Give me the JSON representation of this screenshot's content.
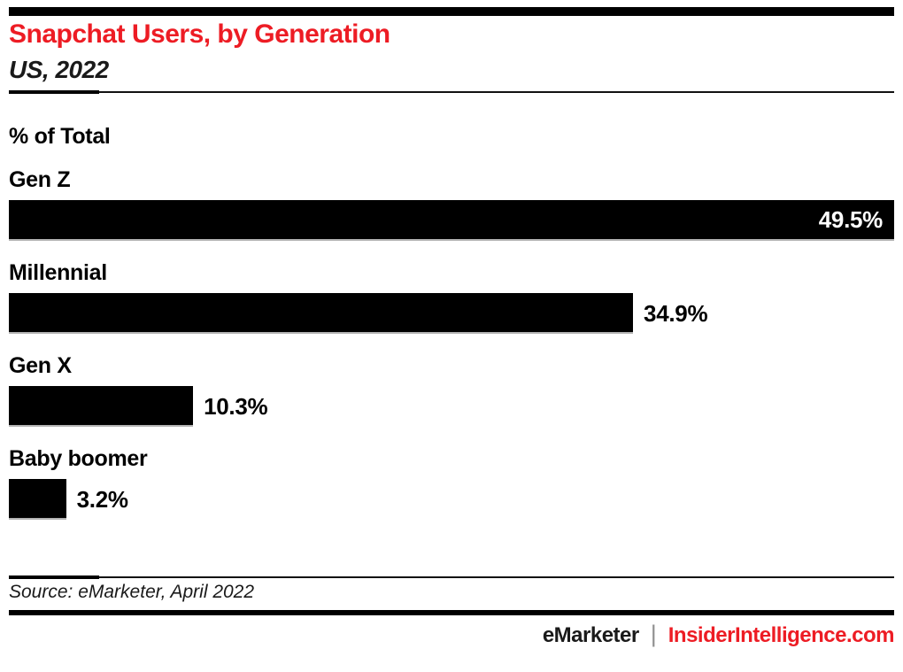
{
  "header": {
    "title": "Snapchat Users, by Generation",
    "subtitle": "US, 2022"
  },
  "chart_data": {
    "type": "bar",
    "orientation": "horizontal",
    "title": "Snapchat Users, by Generation",
    "subtitle": "US, 2022",
    "unit_label": "% of Total",
    "categories": [
      "Gen Z",
      "Millennial",
      "Gen X",
      "Baby boomer"
    ],
    "values": [
      49.5,
      34.9,
      10.3,
      3.2
    ],
    "value_labels": [
      "49.5%",
      "34.9%",
      "10.3%",
      "3.2%"
    ],
    "xlim": [
      0,
      49.5
    ],
    "grid": false,
    "legend": "none",
    "bar_color": "#000000",
    "inside_label_threshold_pct": 85
  },
  "footer": {
    "source": "Source: eMarketer, April 2022",
    "brand_left": "eMarketer",
    "separator": "|",
    "brand_right": "InsiderIntelligence.com"
  },
  "colors": {
    "accent_red": "#ed1c24",
    "bar_black": "#000000",
    "separator_gray": "#919191"
  }
}
